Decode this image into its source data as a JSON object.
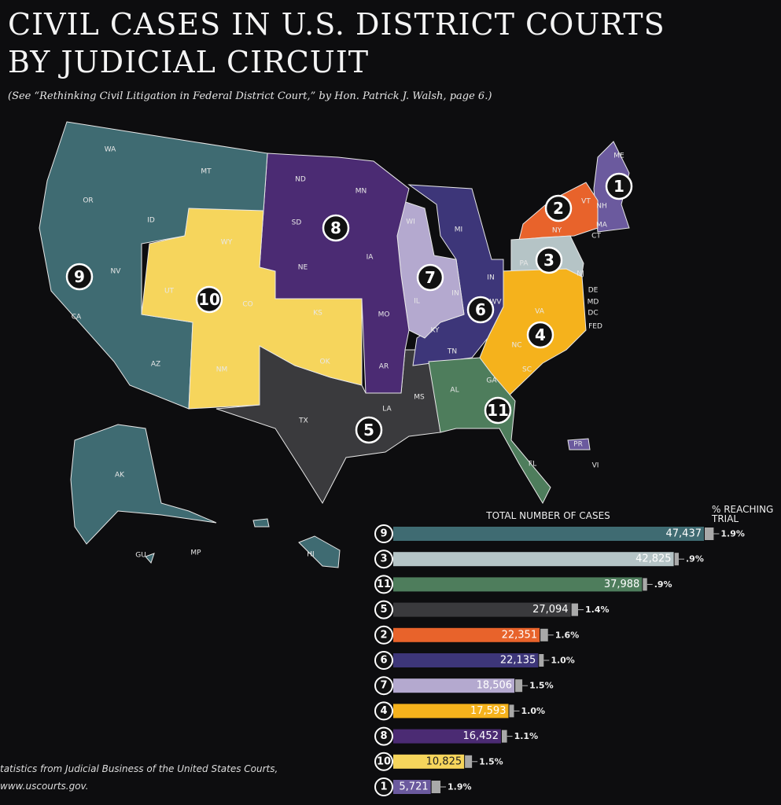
{
  "title_lines": [
    "CIVIL CASES IN U.S. DISTRICT COURTS",
    "BY JUDICIAL CIRCUIT"
  ],
  "subtitle": "(See “Rethinking Civil Litigation in Federal District Court,” by Hon. Patrick J. Walsh, page 6.)",
  "source_lines": [
    "tatistics from Judicial Business of the United States Courts,",
    "www.uscourts.gov."
  ],
  "map": {
    "circuits": [
      {
        "label": "1",
        "color": "#6b5a9e"
      },
      {
        "label": "2",
        "color": "#e8632b"
      },
      {
        "label": "3",
        "color": "#b5c4c6"
      },
      {
        "label": "4",
        "color": "#f5b21c"
      },
      {
        "label": "5",
        "color": "#3a3a3d"
      },
      {
        "label": "6",
        "color": "#3d3679"
      },
      {
        "label": "7",
        "color": "#b4a9cf"
      },
      {
        "label": "8",
        "color": "#4b2b73"
      },
      {
        "label": "9",
        "color": "#3f6b72"
      },
      {
        "label": "10",
        "color": "#f6d55c"
      },
      {
        "label": "11",
        "color": "#4e7d5c"
      }
    ],
    "states": [
      "WA",
      "MT",
      "OR",
      "ID",
      "WY",
      "NV",
      "UT",
      "CO",
      "CA",
      "AZ",
      "NM",
      "ND",
      "MN",
      "SD",
      "NE",
      "IA",
      "KS",
      "MO",
      "OK",
      "AR",
      "TX",
      "LA",
      "MS",
      "WI",
      "MI",
      "IL",
      "IN",
      "IN",
      "KY",
      "TN",
      "AL",
      "GA",
      "FL",
      "WV",
      "VA",
      "NC",
      "SC",
      "PA",
      "NJ",
      "NY",
      "VT",
      "NH",
      "ME",
      "MA",
      "CT",
      "DE",
      "MD",
      "DC",
      "FED",
      "AK",
      "HI",
      "GU",
      "MP",
      "PR",
      "VI"
    ]
  },
  "chart_data": {
    "type": "bar",
    "orientation": "horizontal",
    "x_label": "TOTAL NUMBER OF CASES",
    "trial_label_lines": [
      "% REACHING",
      "TRIAL"
    ],
    "categories": [
      "9",
      "3",
      "11",
      "5",
      "2",
      "6",
      "7",
      "4",
      "8",
      "10",
      "1"
    ],
    "values": [
      47437,
      42825,
      37988,
      27094,
      22351,
      22135,
      18506,
      17593,
      16452,
      10825,
      5721
    ],
    "value_labels": [
      "47,437",
      "42,825",
      "37,988",
      "27,094",
      "22,351",
      "22,135",
      "18,506",
      "17,593",
      "16,452",
      "10,825",
      "5,721"
    ],
    "colors": [
      "#3f6b72",
      "#b5c4c6",
      "#4e7d5c",
      "#3a3a3d",
      "#e8632b",
      "#3d3679",
      "#b4a9cf",
      "#f5b21c",
      "#4b2b73",
      "#f6d55c",
      "#6b5a9e"
    ],
    "trial_values": [
      1.9,
      0.9,
      0.9,
      1.4,
      1.6,
      1.0,
      1.5,
      1.0,
      1.1,
      1.5,
      1.9
    ],
    "trial_labels": [
      "1.9%",
      ".9%",
      ".9%",
      "1.4%",
      "1.6%",
      "1.0%",
      "1.5%",
      "1.0%",
      "1.1%",
      "1.5%",
      "1.9%"
    ]
  }
}
